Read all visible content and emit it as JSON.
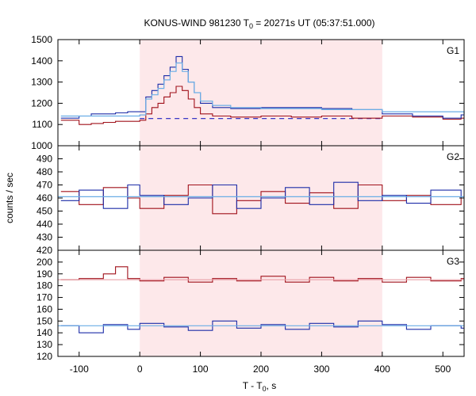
{
  "chart_data": {
    "type": "line",
    "title_parts": {
      "a": "KONUS-WIND 981230 T",
      "sub": "0",
      "b": " = 20271s UT (05:37:51.000)"
    },
    "xlabel_parts": {
      "a": "T - T",
      "sub": "0",
      "b": ", s"
    },
    "ylabel": "counts / sec",
    "xlim": [
      -135,
      535
    ],
    "x_ticks": [
      -100,
      0,
      100,
      200,
      300,
      400,
      500
    ],
    "x_tick_labels": [
      "-100",
      "0",
      "100",
      "200",
      "300",
      "400",
      "500"
    ],
    "highlight_interval": [
      0,
      400
    ],
    "highlight_color": "#fde8ea",
    "colors": {
      "red": "#a0101a",
      "blue": "#1c2ca8",
      "fit": "#6aaee6",
      "bg_dash": "#2020c0"
    },
    "panels": [
      {
        "label": "G1",
        "ylim": [
          1000,
          1500
        ],
        "y_ticks": [
          1000,
          1100,
          1200,
          1300,
          1400,
          1500
        ],
        "y_tick_labels": [
          "1000",
          "1100",
          "1200",
          "1300",
          "1400",
          "1500"
        ],
        "background_level": 1128,
        "series": [
          {
            "color": "red",
            "x": [
              -130,
              -100,
              -80,
              -60,
              -40,
              -20,
              0,
              10,
              20,
              30,
              40,
              50,
              60,
              70,
              80,
              90,
              100,
              120,
              150,
              200,
              250,
              300,
              350,
              400,
              450,
              500,
              530
            ],
            "y": [
              1120,
              1100,
              1105,
              1110,
              1115,
              1115,
              1120,
              1150,
              1180,
              1200,
              1230,
              1250,
              1280,
              1260,
              1220,
              1180,
              1150,
              1140,
              1135,
              1140,
              1135,
              1140,
              1130,
              1140,
              1135,
              1125,
              1130
            ]
          },
          {
            "color": "blue",
            "x": [
              -130,
              -100,
              -80,
              -60,
              -40,
              -20,
              0,
              10,
              20,
              30,
              40,
              50,
              60,
              70,
              80,
              90,
              100,
              120,
              150,
              200,
              250,
              300,
              350,
              400,
              450,
              500,
              530
            ],
            "y": [
              1130,
              1140,
              1150,
              1150,
              1155,
              1160,
              1160,
              1230,
              1260,
              1290,
              1330,
              1370,
              1420,
              1360,
              1300,
              1250,
              1200,
              1180,
              1175,
              1180,
              1180,
              1175,
              1170,
              1150,
              1140,
              1130,
              1145
            ]
          },
          {
            "color": "fit",
            "x": [
              -130,
              0,
              10,
              20,
              30,
              40,
              50,
              60,
              70,
              80,
              90,
              100,
              120,
              150,
              200,
              300,
              400,
              535
            ],
            "y": [
              1140,
              1145,
              1220,
              1240,
              1270,
              1310,
              1350,
              1390,
              1350,
              1300,
              1250,
              1210,
              1190,
              1180,
              1175,
              1170,
              1160,
              1150
            ]
          }
        ]
      },
      {
        "label": "G2",
        "ylim": [
          420,
          500
        ],
        "y_ticks": [
          420,
          430,
          440,
          450,
          460,
          470,
          480,
          490
        ],
        "y_tick_labels": [
          "420",
          "430",
          "440",
          "450",
          "460",
          "470",
          "480",
          "490"
        ],
        "series": [
          {
            "color": "red",
            "x": [
              -130,
              -100,
              -60,
              -20,
              0,
              40,
              80,
              120,
              160,
              200,
              240,
              280,
              320,
              360,
              400,
              440,
              480,
              530
            ],
            "y": [
              465,
              455,
              468,
              460,
              452,
              462,
              470,
              448,
              458,
              465,
              456,
              464,
              452,
              470,
              458,
              462,
              455,
              460
            ]
          },
          {
            "color": "blue",
            "x": [
              -130,
              -100,
              -60,
              -20,
              0,
              40,
              80,
              120,
              160,
              200,
              240,
              280,
              320,
              360,
              400,
              440,
              480,
              530
            ],
            "y": [
              458,
              466,
              452,
              470,
              462,
              455,
              460,
              470,
              452,
              460,
              468,
              455,
              472,
              458,
              462,
              456,
              466,
              460
            ]
          },
          {
            "color": "fit",
            "x": [
              -135,
              535
            ],
            "y": [
              461,
              461
            ]
          }
        ]
      },
      {
        "label": "G3",
        "ylim": [
          120,
          210
        ],
        "y_ticks": [
          120,
          130,
          140,
          150,
          160,
          170,
          180,
          190,
          200
        ],
        "y_tick_labels": [
          "120",
          "130",
          "140",
          "150",
          "160",
          "170",
          "180",
          "190",
          "200"
        ],
        "series": [
          {
            "color": "red",
            "x": [
              -130,
              -100,
              -60,
              -40,
              -20,
              0,
              40,
              80,
              120,
              160,
              200,
              240,
              280,
              320,
              360,
              400,
              440,
              480,
              530
            ],
            "y": [
              185,
              186,
              190,
              196,
              186,
              184,
              187,
              183,
              186,
              184,
              188,
              183,
              187,
              184,
              186,
              183,
              187,
              184,
              186
            ]
          },
          {
            "color": "blue",
            "x": [
              -130,
              -100,
              -60,
              -20,
              0,
              40,
              80,
              120,
              160,
              200,
              240,
              280,
              320,
              360,
              400,
              440,
              480,
              530
            ],
            "y": [
              146,
              140,
              147,
              143,
              148,
              145,
              142,
              150,
              144,
              147,
              143,
              148,
              145,
              150,
              147,
              143,
              146,
              144
            ]
          },
          {
            "color": "fit",
            "x": [
              -135,
              535
            ],
            "y": [
              146,
              146
            ]
          },
          {
            "color": "red_fit",
            "x": [
              -135,
              535
            ],
            "y": [
              185,
              185
            ]
          }
        ]
      }
    ]
  }
}
